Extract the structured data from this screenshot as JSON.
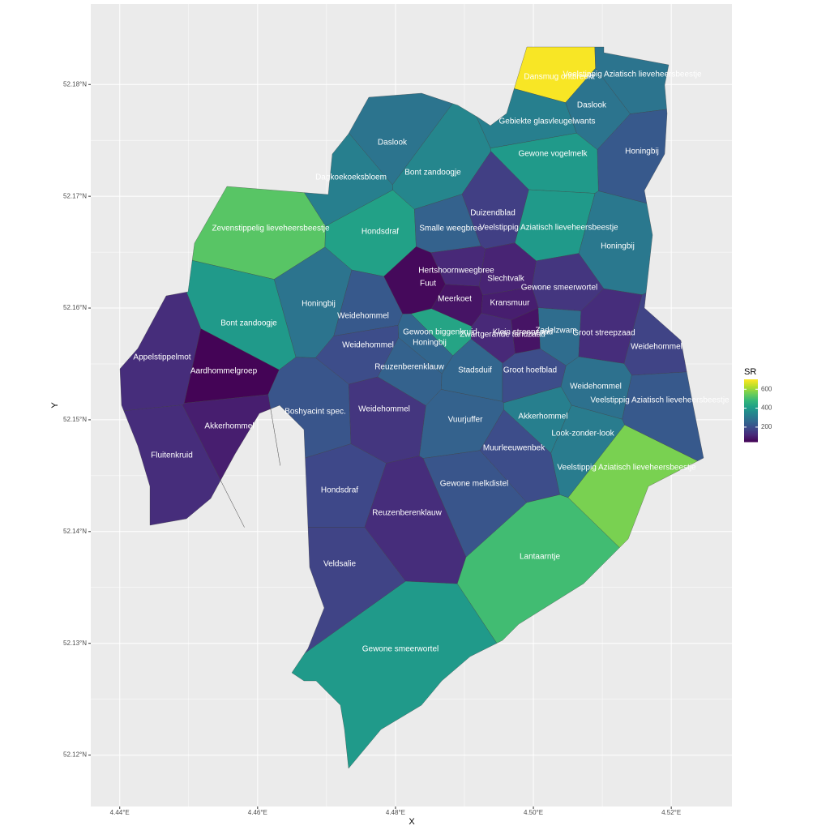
{
  "chart_data": {
    "type": "choropleth",
    "xlabel": "X",
    "ylabel": "Y",
    "xlim": [
      4.4358,
      4.5288
    ],
    "ylim": [
      52.1154,
      52.1872
    ],
    "xticks": [
      {
        "value": 4.44,
        "label": "4.44°E"
      },
      {
        "value": 4.46,
        "label": "4.46°E"
      },
      {
        "value": 4.48,
        "label": "4.48°E"
      },
      {
        "value": 4.5,
        "label": "4.50°E"
      },
      {
        "value": 4.52,
        "label": "4.52°E"
      }
    ],
    "yticks": [
      {
        "value": 52.12,
        "label": "52.12°N"
      },
      {
        "value": 52.13,
        "label": "52.13°N"
      },
      {
        "value": 52.14,
        "label": "52.14°N"
      },
      {
        "value": 52.15,
        "label": "52.15°N"
      },
      {
        "value": 52.16,
        "label": "52.16°N"
      },
      {
        "value": 52.17,
        "label": "52.17°N"
      },
      {
        "value": 52.18,
        "label": "52.18°N"
      }
    ],
    "grid": true,
    "colormap": "viridis",
    "legend": {
      "title": "SR",
      "lim": [
        45,
        705
      ],
      "ticks": [
        200,
        400,
        600
      ]
    },
    "regions": [
      {
        "name": "Dansmug ontbreekt",
        "value": 700
      },
      {
        "name": "Veelstippig Aziatisch lieveheersbeestje",
        "value": 300
      },
      {
        "name": "Daslook",
        "value": 300
      },
      {
        "name": "Gebiekte glasvleugelwants",
        "value": 330
      },
      {
        "name": "Honingbij",
        "value": 230
      },
      {
        "name": "Gewone vogelmelk",
        "value": 400
      },
      {
        "name": "Daslook",
        "value": 300
      },
      {
        "name": "Bont zandoogje",
        "value": 350
      },
      {
        "name": "Dagkoekoeksbloem",
        "value": 330
      },
      {
        "name": "Zevenstippelig lieveheersbeestje",
        "value": 530
      },
      {
        "name": "Hondsdraf",
        "value": 420
      },
      {
        "name": "Duizendblad",
        "value": 170
      },
      {
        "name": "Smalle weegbree",
        "value": 250
      },
      {
        "name": "Veelstippig Aziatisch lieveheersbeestje",
        "value": 400
      },
      {
        "name": "Honingbij",
        "value": 310
      },
      {
        "name": "Hertshoornweegbree",
        "value": 120
      },
      {
        "name": "Fuut",
        "value": 60
      },
      {
        "name": "Slechtvalk",
        "value": 110
      },
      {
        "name": "Gewone smeerwortel",
        "value": 150
      },
      {
        "name": "Honingbij",
        "value": 300
      },
      {
        "name": "Weidehommel",
        "value": 230
      },
      {
        "name": "Meerkoet",
        "value": 80
      },
      {
        "name": "Kransmuur",
        "value": 100
      },
      {
        "name": "Bont zandoogje",
        "value": 400
      },
      {
        "name": "Appelstippelmot",
        "value": 130
      },
      {
        "name": "Aardhommelgroep",
        "value": 50
      },
      {
        "name": "Gewoon biggenkruid",
        "value": 430
      },
      {
        "name": "Honingbij",
        "value": 260
      },
      {
        "name": "Klein streepzaad",
        "value": 80
      },
      {
        "name": "Zwartgerande tandzaad",
        "value": 120
      },
      {
        "name": "Zadelzwam",
        "value": 280
      },
      {
        "name": "Groot streepzaad",
        "value": 130
      },
      {
        "name": "Weidehommel",
        "value": 180
      },
      {
        "name": "Weidehommel",
        "value": 200
      },
      {
        "name": "Reuzenberenklauw",
        "value": 250
      },
      {
        "name": "Stadsduif",
        "value": 260
      },
      {
        "name": "Groot hoefblad",
        "value": 200
      },
      {
        "name": "Weidehommel",
        "value": 290
      },
      {
        "name": "Veelstippig Aziatisch lieveheersbeestje",
        "value": 230
      },
      {
        "name": "Akkerhommel",
        "value": 100
      },
      {
        "name": "Boshyacint spec.",
        "value": 220
      },
      {
        "name": "Weidehommel",
        "value": 150
      },
      {
        "name": "Vuurjuffer",
        "value": 250
      },
      {
        "name": "Akkerhommel",
        "value": 330
      },
      {
        "name": "Look-zonder-look",
        "value": 320
      },
      {
        "name": "Fluitenkruid",
        "value": 130
      },
      {
        "name": "Muurleeuwenbek",
        "value": 200
      },
      {
        "name": "Veelstippig Aziatisch lieveheersbeestje",
        "value": 570
      },
      {
        "name": "Gewone melkdistel",
        "value": 220
      },
      {
        "name": "Hondsdraf",
        "value": 190
      },
      {
        "name": "Reuzenberenklauw",
        "value": 130
      },
      {
        "name": "Veldsalie",
        "value": 180
      },
      {
        "name": "Lantaarntje",
        "value": 500
      },
      {
        "name": "Gewone smeerwortel",
        "value": 400
      }
    ]
  }
}
